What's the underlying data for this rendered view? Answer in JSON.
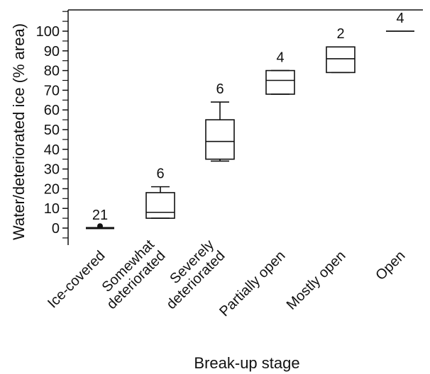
{
  "chart_data": {
    "type": "box",
    "xlabel": "Break-up stage",
    "ylabel": "Water/deteriorated ice (% area)",
    "ylim": [
      -10,
      110
    ],
    "yticks": [
      0,
      10,
      20,
      30,
      40,
      50,
      60,
      70,
      80,
      90,
      100
    ],
    "categories": [
      "Ice-covered",
      "Somewhat deteriorated",
      "Severely deteriorated",
      "Partially open",
      "Mostly open",
      "Open"
    ],
    "category_lines": [
      [
        "Ice-covered"
      ],
      [
        "Somewhat",
        "deteriorated"
      ],
      [
        "Severely",
        "deteriorated"
      ],
      [
        "Partially open"
      ],
      [
        "Mostly open"
      ],
      [
        "Open"
      ]
    ],
    "n": [
      "21",
      "6",
      "6",
      "4",
      "2",
      "4"
    ],
    "boxes": [
      {
        "whisker_low": 0,
        "q1": 0,
        "median": 0,
        "q3": 0,
        "whisker_high": 0,
        "outliers": [
          1
        ]
      },
      {
        "whisker_low": 5,
        "q1": 5,
        "median": 8,
        "q3": 18,
        "whisker_high": 21
      },
      {
        "whisker_low": 34,
        "q1": 35,
        "median": 44,
        "q3": 55,
        "whisker_high": 64
      },
      {
        "whisker_low": 68,
        "q1": 68,
        "median": 75,
        "q3": 80,
        "whisker_high": 80
      },
      {
        "whisker_low": 79,
        "q1": 79,
        "median": 86,
        "q3": 92,
        "whisker_high": 92
      },
      {
        "whisker_low": 100,
        "q1": 100,
        "median": 100,
        "q3": 100,
        "whisker_high": 100
      }
    ],
    "grid": false,
    "legend": "none"
  }
}
